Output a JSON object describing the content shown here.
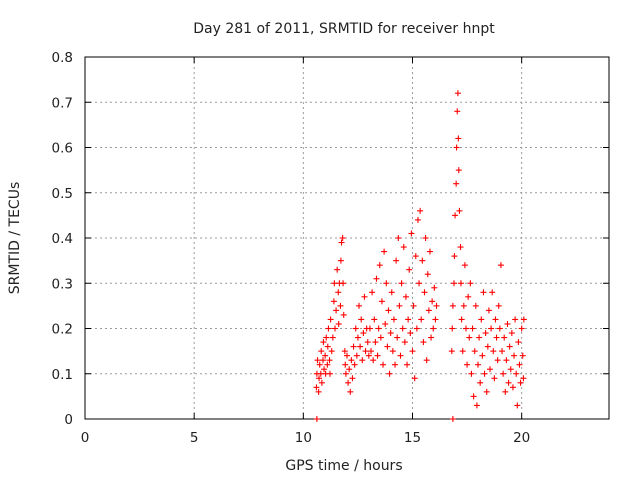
{
  "chart_data": {
    "type": "scatter",
    "title": "Day 281 of 2011, SRMTID for receiver hnpt",
    "xlabel": "GPS time / hours",
    "ylabel": "SRMTID / TECUs",
    "xlim": [
      0,
      24
    ],
    "ylim": [
      0,
      0.8
    ],
    "xticks": [
      0,
      5,
      10,
      15,
      20
    ],
    "xtick_labels": [
      "0",
      "5",
      "10",
      "15",
      "20"
    ],
    "yticks": [
      0,
      0.1,
      0.2,
      0.3,
      0.4,
      0.5,
      0.6,
      0.7,
      0.8
    ],
    "ytick_labels": [
      "0",
      "0.1",
      "0.2",
      "0.3",
      "0.4",
      "0.5",
      "0.6",
      "0.7",
      "0.8"
    ],
    "grid": true,
    "marker": "plus",
    "marker_color": "#ff0000",
    "series": [
      {
        "points": [
          [
            10.6,
            0.07
          ],
          [
            10.62,
            0.1
          ],
          [
            10.65,
            0.13
          ],
          [
            10.7,
            0.06
          ],
          [
            10.72,
            0.09
          ],
          [
            10.75,
            0.12
          ],
          [
            10.8,
            0.1
          ],
          [
            10.82,
            0.15
          ],
          [
            10.85,
            0.08
          ],
          [
            10.9,
            0.13
          ],
          [
            10.92,
            0.17
          ],
          [
            10.95,
            0.11
          ],
          [
            11.0,
            0.14
          ],
          [
            11.02,
            0.1
          ],
          [
            11.05,
            0.18
          ],
          [
            11.1,
            0.12
          ],
          [
            11.12,
            0.16
          ],
          [
            11.15,
            0.2
          ],
          [
            11.2,
            0.13
          ],
          [
            11.22,
            0.1
          ],
          [
            11.25,
            0.22
          ],
          [
            11.3,
            0.15
          ],
          [
            11.35,
            0.18
          ],
          [
            11.4,
            0.26
          ],
          [
            11.42,
            0.3
          ],
          [
            11.45,
            0.2
          ],
          [
            11.5,
            0.24
          ],
          [
            11.55,
            0.33
          ],
          [
            11.6,
            0.28
          ],
          [
            11.62,
            0.21
          ],
          [
            11.65,
            0.3
          ],
          [
            11.7,
            0.25
          ],
          [
            11.72,
            0.35
          ],
          [
            11.75,
            0.39
          ],
          [
            11.8,
            0.4
          ],
          [
            11.82,
            0.3
          ],
          [
            11.85,
            0.23
          ],
          [
            11.9,
            0.15
          ],
          [
            11.92,
            0.12
          ],
          [
            11.95,
            0.1
          ],
          [
            12.0,
            0.14
          ],
          [
            12.05,
            0.08
          ],
          [
            12.1,
            0.11
          ],
          [
            12.15,
            0.06
          ],
          [
            12.2,
            0.13
          ],
          [
            12.25,
            0.09
          ],
          [
            12.3,
            0.16
          ],
          [
            12.35,
            0.12
          ],
          [
            12.4,
            0.2
          ],
          [
            12.45,
            0.14
          ],
          [
            12.5,
            0.18
          ],
          [
            12.55,
            0.25
          ],
          [
            12.6,
            0.16
          ],
          [
            12.65,
            0.22
          ],
          [
            12.7,
            0.13
          ],
          [
            12.75,
            0.19
          ],
          [
            12.8,
            0.27
          ],
          [
            12.85,
            0.15
          ],
          [
            12.9,
            0.2
          ],
          [
            12.95,
            0.17
          ],
          [
            13.0,
            0.14
          ],
          [
            13.05,
            0.2
          ],
          [
            13.1,
            0.15
          ],
          [
            13.15,
            0.28
          ],
          [
            13.2,
            0.13
          ],
          [
            13.25,
            0.22
          ],
          [
            13.3,
            0.17
          ],
          [
            13.35,
            0.31
          ],
          [
            13.4,
            0.14
          ],
          [
            13.45,
            0.2
          ],
          [
            13.5,
            0.34
          ],
          [
            13.55,
            0.18
          ],
          [
            13.6,
            0.26
          ],
          [
            13.65,
            0.12
          ],
          [
            13.7,
            0.37
          ],
          [
            13.75,
            0.21
          ],
          [
            13.8,
            0.3
          ],
          [
            13.85,
            0.16
          ],
          [
            13.9,
            0.24
          ],
          [
            13.95,
            0.1
          ],
          [
            14.0,
            0.19
          ],
          [
            14.05,
            0.28
          ],
          [
            14.1,
            0.15
          ],
          [
            14.15,
            0.22
          ],
          [
            14.2,
            0.12
          ],
          [
            14.25,
            0.35
          ],
          [
            14.3,
            0.18
          ],
          [
            14.35,
            0.4
          ],
          [
            14.4,
            0.25
          ],
          [
            14.45,
            0.14
          ],
          [
            14.5,
            0.3
          ],
          [
            14.55,
            0.2
          ],
          [
            14.6,
            0.38
          ],
          [
            14.65,
            0.17
          ],
          [
            14.7,
            0.27
          ],
          [
            14.75,
            0.12
          ],
          [
            14.8,
            0.22
          ],
          [
            14.85,
            0.33
          ],
          [
            14.9,
            0.19
          ],
          [
            14.95,
            0.41
          ],
          [
            15.0,
            0.15
          ],
          [
            15.05,
            0.25
          ],
          [
            15.1,
            0.09
          ],
          [
            15.15,
            0.36
          ],
          [
            15.2,
            0.2
          ],
          [
            15.25,
            0.44
          ],
          [
            15.3,
            0.3
          ],
          [
            15.35,
            0.46
          ],
          [
            15.4,
            0.22
          ],
          [
            15.45,
            0.35
          ],
          [
            15.5,
            0.17
          ],
          [
            15.55,
            0.28
          ],
          [
            15.6,
            0.4
          ],
          [
            15.65,
            0.13
          ],
          [
            15.7,
            0.32
          ],
          [
            15.75,
            0.24
          ],
          [
            15.8,
            0.37
          ],
          [
            15.85,
            0.18
          ],
          [
            15.9,
            0.26
          ],
          [
            15.95,
            0.2
          ],
          [
            16.0,
            0.29
          ],
          [
            16.05,
            0.22
          ],
          [
            16.1,
            0.25
          ],
          [
            16.8,
            0.15
          ],
          [
            16.82,
            0.2
          ],
          [
            16.85,
            0.25
          ],
          [
            16.9,
            0.3
          ],
          [
            16.92,
            0.36
          ],
          [
            16.95,
            0.45
          ],
          [
            17.0,
            0.52
          ],
          [
            17.02,
            0.6
          ],
          [
            17.05,
            0.68
          ],
          [
            17.08,
            0.72
          ],
          [
            17.1,
            0.62
          ],
          [
            17.12,
            0.55
          ],
          [
            17.15,
            0.46
          ],
          [
            17.2,
            0.38
          ],
          [
            17.22,
            0.3
          ],
          [
            17.25,
            0.22
          ],
          [
            17.3,
            0.15
          ],
          [
            17.35,
            0.25
          ],
          [
            17.4,
            0.34
          ],
          [
            17.45,
            0.2
          ],
          [
            17.5,
            0.12
          ],
          [
            17.55,
            0.27
          ],
          [
            17.6,
            0.18
          ],
          [
            17.65,
            0.3
          ],
          [
            17.7,
            0.1
          ],
          [
            17.75,
            0.2
          ],
          [
            17.8,
            0.05
          ],
          [
            17.85,
            0.15
          ],
          [
            17.9,
            0.25
          ],
          [
            17.95,
            0.03
          ],
          [
            18.0,
            0.12
          ],
          [
            18.05,
            0.18
          ],
          [
            18.1,
            0.08
          ],
          [
            18.15,
            0.22
          ],
          [
            18.2,
            0.14
          ],
          [
            18.25,
            0.28
          ],
          [
            18.3,
            0.1
          ],
          [
            18.35,
            0.19
          ],
          [
            18.4,
            0.06
          ],
          [
            18.45,
            0.16
          ],
          [
            18.5,
            0.24
          ],
          [
            18.55,
            0.11
          ],
          [
            18.6,
            0.2
          ],
          [
            18.65,
            0.28
          ],
          [
            18.7,
            0.15
          ],
          [
            18.75,
            0.09
          ],
          [
            18.8,
            0.22
          ],
          [
            18.85,
            0.18
          ],
          [
            18.9,
            0.13
          ],
          [
            18.95,
            0.25
          ],
          [
            19.0,
            0.2
          ],
          [
            19.05,
            0.34
          ],
          [
            19.1,
            0.15
          ],
          [
            19.15,
            0.1
          ],
          [
            19.2,
            0.18
          ],
          [
            19.25,
            0.06
          ],
          [
            19.3,
            0.13
          ],
          [
            19.35,
            0.21
          ],
          [
            19.4,
            0.08
          ],
          [
            19.45,
            0.16
          ],
          [
            19.5,
            0.11
          ],
          [
            19.55,
            0.19
          ],
          [
            19.6,
            0.07
          ],
          [
            19.65,
            0.14
          ],
          [
            19.7,
            0.22
          ],
          [
            19.75,
            0.1
          ],
          [
            19.8,
            0.03
          ],
          [
            19.85,
            0.17
          ],
          [
            19.9,
            0.12
          ],
          [
            19.95,
            0.08
          ],
          [
            20.0,
            0.2
          ],
          [
            20.05,
            0.14
          ],
          [
            20.08,
            0.09
          ],
          [
            20.1,
            0.22
          ],
          [
            10.62,
            0.0
          ],
          [
            16.85,
            0.0
          ]
        ]
      }
    ]
  }
}
